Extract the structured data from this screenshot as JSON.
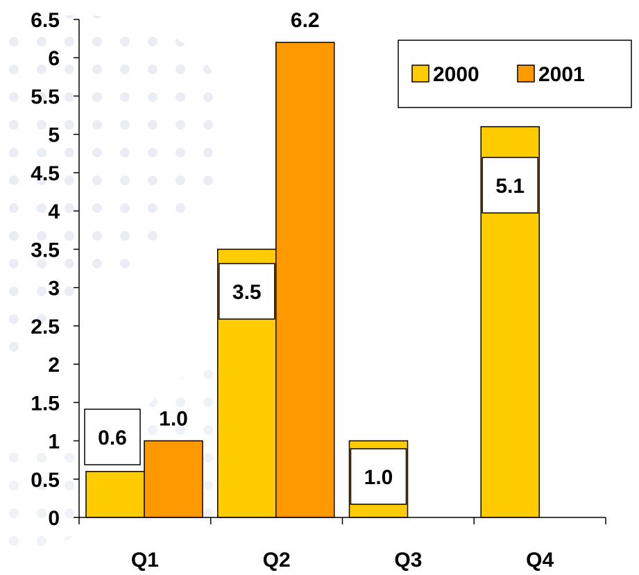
{
  "chart_data": {
    "type": "bar",
    "categories": [
      "Q1",
      "Q2",
      "Q3",
      "Q4"
    ],
    "series": [
      {
        "name": "2000",
        "values": [
          0.6,
          3.5,
          1.0,
          5.1
        ],
        "labels": [
          "0.6",
          "3.5",
          "1.0",
          "5.1"
        ],
        "color": "#FFCC00"
      },
      {
        "name": "2001",
        "values": [
          1.0,
          6.2,
          null,
          null
        ],
        "labels": [
          "1.0",
          "6.2",
          "",
          ""
        ],
        "color": "#FF9900"
      }
    ],
    "ylim": [
      0,
      6.5
    ],
    "yticks": [
      "0",
      "0.5",
      "1",
      "1.5",
      "2",
      "2.5",
      "3",
      "3.5",
      "4",
      "4.5",
      "5",
      "5.5",
      "6",
      "6.5"
    ],
    "legend_position": "top-right",
    "grid": false,
    "title": "",
    "xlabel": "",
    "ylabel": ""
  }
}
